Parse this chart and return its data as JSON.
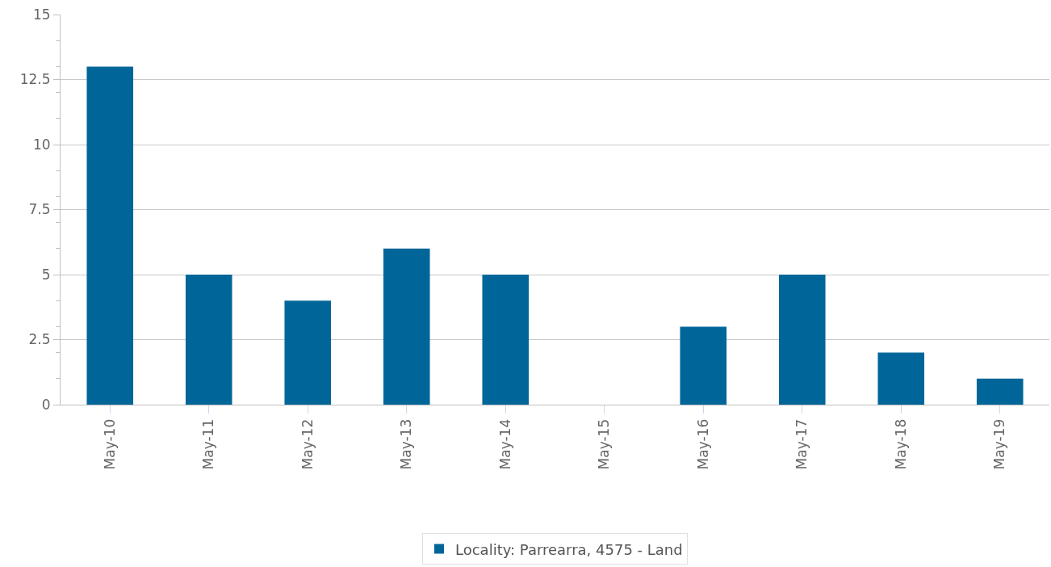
{
  "chart_data": {
    "type": "bar",
    "categories": [
      "May-10",
      "May-11",
      "May-12",
      "May-13",
      "May-14",
      "May-15",
      "May-16",
      "May-17",
      "May-18",
      "May-19"
    ],
    "series": [
      {
        "name": "Locality: Parrearra, 4575 - Land",
        "color": "#006699",
        "values": [
          13,
          5,
          4,
          6,
          5,
          0,
          3,
          5,
          2,
          1
        ]
      }
    ],
    "ylim": [
      0,
      15
    ],
    "yticks": [
      0,
      2.5,
      5,
      7.5,
      10,
      12.5,
      15
    ],
    "grid": "y",
    "legend": "bottom"
  }
}
